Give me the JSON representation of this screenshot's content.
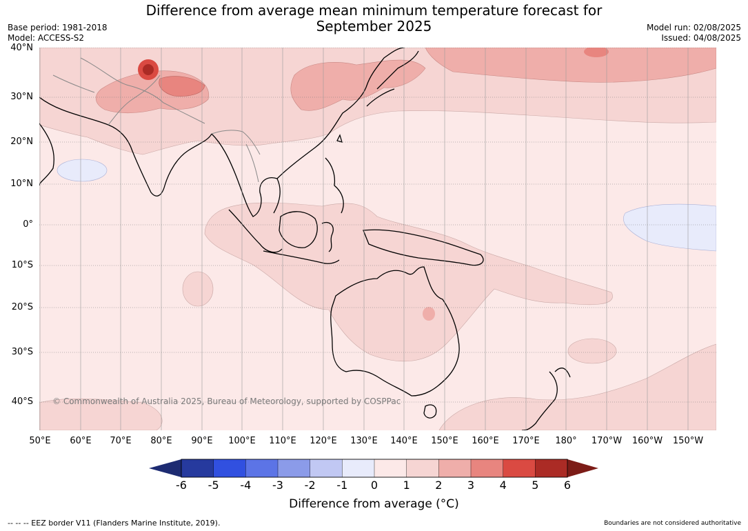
{
  "title_line1": "Difference from average mean minimum temperature forecast for",
  "title_line2": "September 2025",
  "base_period": "Base period: 1981-2018",
  "model": "Model: ACCESS-S2",
  "model_run": "Model run: 02/08/2025",
  "issued": "Issued: 04/08/2025",
  "copyright": "© Commonwealth of Australia 2025, Bureau of Meteorology, supported by COSPPac",
  "lat_labels": [
    "40°N",
    "30°N",
    "20°N",
    "10°N",
    "0°",
    "10°S",
    "20°S",
    "30°S",
    "40°S"
  ],
  "lon_labels": [
    "50°E",
    "60°E",
    "70°E",
    "80°E",
    "90°E",
    "100°E",
    "110°E",
    "120°E",
    "130°E",
    "140°E",
    "150°E",
    "160°E",
    "170°E",
    "180°",
    "170°W",
    "160°W",
    "150°W"
  ],
  "colorbar": {
    "ticks": [
      "-6",
      "-5",
      "-4",
      "-3",
      "-2",
      "-1",
      "0",
      "1",
      "2",
      "3",
      "4",
      "5",
      "6"
    ],
    "colors": [
      "#263a9e",
      "#3150e0",
      "#5c74e6",
      "#8b9be9",
      "#c1c8f3",
      "#e8ebfb",
      "#fce9e8",
      "#f6d5d3",
      "#efaeaa",
      "#e8857f",
      "#da4a42",
      "#ab2b25"
    ],
    "under_color": "#1d2b72",
    "over_color": "#7c1c17",
    "label": "Difference from average (°C)"
  },
  "footer_left": "--  --  -- EEZ border V11 (Flanders Marine Institute, 2019).",
  "footer_right": "Boundaries are not considered authoritative"
}
